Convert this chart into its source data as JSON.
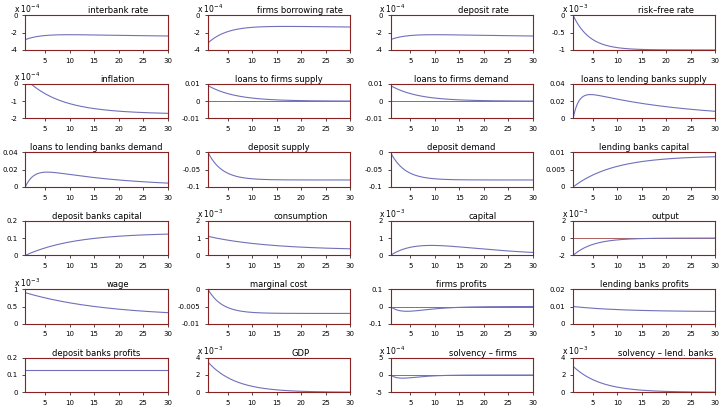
{
  "nrows": 6,
  "ncols": 4,
  "T": 30,
  "panels": [
    {
      "title": "interbank rate",
      "exp": -4,
      "ylim": [
        -4,
        0
      ],
      "yticks": [
        0,
        -2,
        -4
      ],
      "curve_type": "u_shape_neg",
      "has_zero_line": false
    },
    {
      "title": "firms borrowing rate",
      "exp": -4,
      "ylim": [
        -4,
        0
      ],
      "yticks": [
        0,
        -2,
        -4
      ],
      "curve_type": "u_shape_neg_deep",
      "has_zero_line": false
    },
    {
      "title": "deposit rate",
      "exp": -4,
      "ylim": [
        -4,
        0
      ],
      "yticks": [
        0,
        -2,
        -4
      ],
      "curve_type": "u_shape_neg",
      "has_zero_line": false
    },
    {
      "title": "risk–free rate",
      "exp": -3,
      "ylim": [
        -1,
        0
      ],
      "yticks": [
        0,
        -0.5,
        -1
      ],
      "curve_type": "decay_neg_risk",
      "has_zero_line": false
    },
    {
      "title": "inflation",
      "exp": -4,
      "ylim": [
        -2,
        0
      ],
      "yticks": [
        0,
        -1,
        -2
      ],
      "curve_type": "u_shape_neg_shallow",
      "has_zero_line": false
    },
    {
      "title": "loans to firms supply",
      "exp": null,
      "ylim": [
        -0.01,
        0.01
      ],
      "yticks": [
        0.01,
        0,
        -0.01
      ],
      "curve_type": "decay_pos_loans",
      "has_zero_line": true
    },
    {
      "title": "loans to firms demand",
      "exp": null,
      "ylim": [
        -0.01,
        0.01
      ],
      "yticks": [
        0.01,
        0,
        -0.01
      ],
      "curve_type": "decay_pos_loans",
      "has_zero_line": true
    },
    {
      "title": "loans to lending banks supply",
      "exp": null,
      "ylim": [
        0,
        0.04
      ],
      "yticks": [
        0.04,
        0.02,
        0
      ],
      "curve_type": "decay_pos_llb_supply",
      "has_zero_line": false
    },
    {
      "title": "loans to lending banks demand",
      "exp": null,
      "ylim": [
        0,
        0.04
      ],
      "yticks": [
        0.04,
        0.02,
        0
      ],
      "curve_type": "decay_pos_llb_demand",
      "has_zero_line": false
    },
    {
      "title": "deposit supply",
      "exp": null,
      "ylim": [
        -0.1,
        0
      ],
      "yticks": [
        0,
        -0.05,
        -0.1
      ],
      "curve_type": "decay_neg_dep",
      "has_zero_line": false
    },
    {
      "title": "deposit demand",
      "exp": null,
      "ylim": [
        -0.1,
        0
      ],
      "yticks": [
        0,
        -0.05,
        -0.1
      ],
      "curve_type": "decay_neg_dep",
      "has_zero_line": false
    },
    {
      "title": "lending banks capital",
      "exp": null,
      "ylim": [
        0,
        0.01
      ],
      "yticks": [
        0.01,
        0.005,
        0
      ],
      "curve_type": "grow_lbc",
      "has_zero_line": false
    },
    {
      "title": "deposit banks capital",
      "exp": null,
      "ylim": [
        0,
        0.2
      ],
      "yticks": [
        0.2,
        0.1,
        0
      ],
      "curve_type": "grow_dbc",
      "has_zero_line": false
    },
    {
      "title": "consumption",
      "exp": -3,
      "ylim": [
        0,
        2
      ],
      "yticks": [
        2,
        1,
        0
      ],
      "curve_type": "decay_consumption",
      "has_zero_line": false
    },
    {
      "title": "capital",
      "exp": -3,
      "ylim": [
        0,
        2
      ],
      "yticks": [
        2,
        1,
        0
      ],
      "curve_type": "hump_capital",
      "has_zero_line": false
    },
    {
      "title": "output",
      "exp": -3,
      "ylim": [
        -2,
        2
      ],
      "yticks": [
        2,
        0,
        -2
      ],
      "curve_type": "neg_output",
      "has_zero_line": true
    },
    {
      "title": "wage",
      "exp": -3,
      "ylim": [
        0,
        1
      ],
      "yticks": [
        1,
        0.5,
        0
      ],
      "curve_type": "decay_wage",
      "has_zero_line": false
    },
    {
      "title": "marginal cost",
      "exp": null,
      "ylim": [
        -0.01,
        0
      ],
      "yticks": [
        0,
        -0.005,
        -0.01
      ],
      "curve_type": "decay_mc",
      "has_zero_line": false
    },
    {
      "title": "firms profits",
      "exp": null,
      "ylim": [
        -0.1,
        0.1
      ],
      "yticks": [
        0.1,
        0,
        -0.1
      ],
      "curve_type": "neg_spike_fp",
      "has_zero_line": true
    },
    {
      "title": "lending banks profits",
      "exp": null,
      "ylim": [
        0,
        0.02
      ],
      "yticks": [
        0.02,
        0.01,
        0
      ],
      "curve_type": "decay_lbp",
      "has_zero_line": false
    },
    {
      "title": "deposit banks profits",
      "exp": null,
      "ylim": [
        0,
        0.2
      ],
      "yticks": [
        0.2,
        0.1,
        0
      ],
      "curve_type": "flat_dbp",
      "has_zero_line": false
    },
    {
      "title": "GDP",
      "exp": -3,
      "ylim": [
        0,
        4
      ],
      "yticks": [
        4,
        2,
        0
      ],
      "curve_type": "decay_gdp",
      "has_zero_line": false
    },
    {
      "title": "solvency – firms",
      "exp": -4,
      "ylim": [
        -5,
        5
      ],
      "yticks": [
        5,
        0,
        -5
      ],
      "curve_type": "neg_spike_sf",
      "has_zero_line": true
    },
    {
      "title": "solvency – lend. banks",
      "exp": -3,
      "ylim": [
        0,
        4
      ],
      "yticks": [
        4,
        2,
        0
      ],
      "curve_type": "decay_slb",
      "has_zero_line": false
    }
  ],
  "zero_line_color": "#b06060",
  "curve_color": "#7070bb",
  "spine_color": "#882222",
  "bg_color": "#ffffff",
  "xticks": [
    5,
    10,
    15,
    20,
    25,
    30
  ],
  "tick_fontsize": 5.0,
  "title_fontsize": 6.0,
  "scale_fontsize": 5.5
}
